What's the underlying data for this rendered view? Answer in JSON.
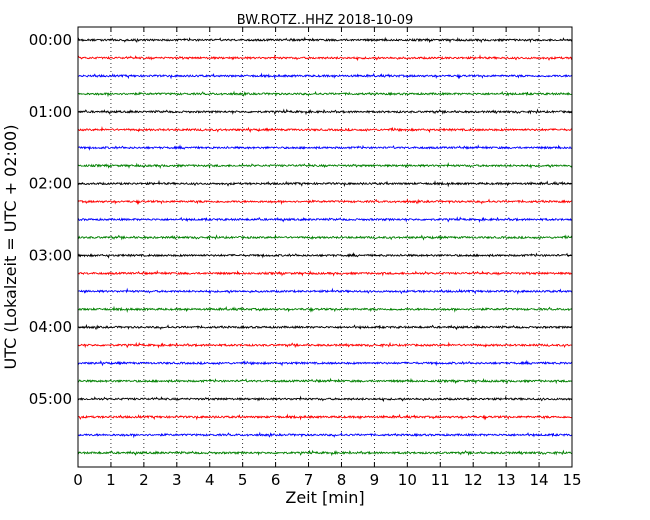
{
  "chart_data": {
    "type": "line",
    "title": "BW.ROTZ..HHZ 2018-10-09",
    "xlabel": "Zeit  [min]",
    "ylabel": "UTC (Lokalzeit = UTC + 02:00)",
    "xlim": [
      0,
      15
    ],
    "xticks": [
      "0",
      "1",
      "2",
      "3",
      "4",
      "5",
      "6",
      "7",
      "8",
      "9",
      "10",
      "11",
      "12",
      "13",
      "14",
      "15"
    ],
    "yticks": [
      "00:00",
      "01:00",
      "02:00",
      "03:00",
      "04:00",
      "05:00"
    ],
    "grid": "vertical-dotted",
    "trace_colors": [
      "#000000",
      "#ff0000",
      "#0000ff",
      "#008000"
    ],
    "trace_count": 24,
    "trace_interval_min": 15,
    "traces": [
      {
        "start": "00:00",
        "color": "#000000"
      },
      {
        "start": "00:15",
        "color": "#ff0000"
      },
      {
        "start": "00:30",
        "color": "#0000ff"
      },
      {
        "start": "00:45",
        "color": "#008000"
      },
      {
        "start": "01:00",
        "color": "#000000"
      },
      {
        "start": "01:15",
        "color": "#ff0000"
      },
      {
        "start": "01:30",
        "color": "#0000ff"
      },
      {
        "start": "01:45",
        "color": "#008000"
      },
      {
        "start": "02:00",
        "color": "#000000"
      },
      {
        "start": "02:15",
        "color": "#ff0000"
      },
      {
        "start": "02:30",
        "color": "#0000ff"
      },
      {
        "start": "02:45",
        "color": "#008000"
      },
      {
        "start": "03:00",
        "color": "#000000"
      },
      {
        "start": "03:15",
        "color": "#ff0000"
      },
      {
        "start": "03:30",
        "color": "#0000ff"
      },
      {
        "start": "03:45",
        "color": "#008000"
      },
      {
        "start": "04:00",
        "color": "#000000"
      },
      {
        "start": "04:15",
        "color": "#ff0000"
      },
      {
        "start": "04:30",
        "color": "#0000ff"
      },
      {
        "start": "04:45",
        "color": "#008000"
      },
      {
        "start": "05:00",
        "color": "#000000"
      },
      {
        "start": "05:15",
        "color": "#ff0000"
      },
      {
        "start": "05:30",
        "color": "#0000ff"
      },
      {
        "start": "05:45",
        "color": "#008000"
      }
    ]
  }
}
